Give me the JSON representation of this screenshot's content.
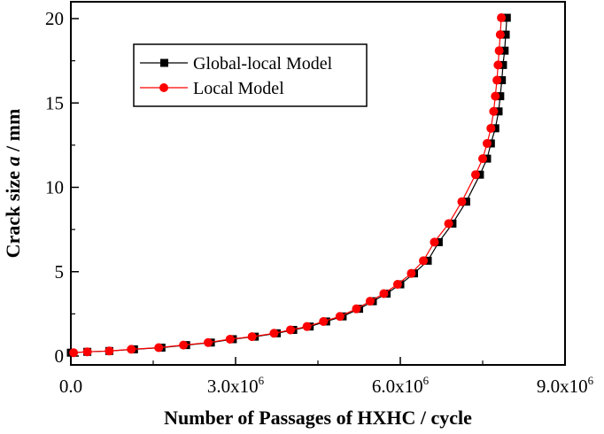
{
  "chart_data": {
    "type": "line",
    "title": "",
    "xlabel": "Number of Passages of HXHC / cycle",
    "ylabel_parts": [
      "Crack size ",
      "a",
      " / mm"
    ],
    "xlim": [
      0,
      9000000
    ],
    "ylim": [
      0,
      20
    ],
    "x_ticks": [
      {
        "value": 0,
        "mantissa": "0.0",
        "exponent": ""
      },
      {
        "value": 3000000,
        "mantissa": "3.0x10",
        "exponent": "6"
      },
      {
        "value": 6000000,
        "mantissa": "6.0x10",
        "exponent": "6"
      },
      {
        "value": 9000000,
        "mantissa": "9.0x10",
        "exponent": "6"
      }
    ],
    "y_ticks": [
      {
        "value": 0,
        "label": "0"
      },
      {
        "value": 5,
        "label": "5"
      },
      {
        "value": 10,
        "label": "10"
      },
      {
        "value": 15,
        "label": "15"
      },
      {
        "value": 20,
        "label": "20"
      }
    ],
    "legend_position": "top-left",
    "series": [
      {
        "name": "Global-local Model",
        "color": "#000000",
        "marker": "square",
        "points": [
          [
            0,
            0.2
          ],
          [
            300000,
            0.25
          ],
          [
            700000,
            0.3
          ],
          [
            1150000,
            0.4
          ],
          [
            1650000,
            0.5
          ],
          [
            2100000,
            0.65
          ],
          [
            2550000,
            0.8
          ],
          [
            2950000,
            1.0
          ],
          [
            3350000,
            1.15
          ],
          [
            3750000,
            1.35
          ],
          [
            4050000,
            1.55
          ],
          [
            4350000,
            1.75
          ],
          [
            4650000,
            2.05
          ],
          [
            4950000,
            2.35
          ],
          [
            5250000,
            2.8
          ],
          [
            5500000,
            3.25
          ],
          [
            5750000,
            3.7
          ],
          [
            6000000,
            4.25
          ],
          [
            6250000,
            4.9
          ],
          [
            6500000,
            5.65
          ],
          [
            6700000,
            6.75
          ],
          [
            6950000,
            7.85
          ],
          [
            7200000,
            9.15
          ],
          [
            7450000,
            10.75
          ],
          [
            7580000,
            11.7
          ],
          [
            7650000,
            12.6
          ],
          [
            7730000,
            13.5
          ],
          [
            7790000,
            14.5
          ],
          [
            7820000,
            15.4
          ],
          [
            7850000,
            16.35
          ],
          [
            7870000,
            17.25
          ],
          [
            7900000,
            18.1
          ],
          [
            7920000,
            19.05
          ],
          [
            7940000,
            20.05
          ]
        ]
      },
      {
        "name": "Local Model",
        "color": "#ff0000",
        "marker": "circle",
        "points": [
          [
            50000,
            0.2
          ],
          [
            300000,
            0.25
          ],
          [
            700000,
            0.3
          ],
          [
            1100000,
            0.4
          ],
          [
            1600000,
            0.5
          ],
          [
            2050000,
            0.65
          ],
          [
            2500000,
            0.8
          ],
          [
            2900000,
            1.0
          ],
          [
            3300000,
            1.15
          ],
          [
            3700000,
            1.35
          ],
          [
            4000000,
            1.55
          ],
          [
            4300000,
            1.75
          ],
          [
            4600000,
            2.05
          ],
          [
            4900000,
            2.35
          ],
          [
            5200000,
            2.8
          ],
          [
            5450000,
            3.25
          ],
          [
            5700000,
            3.7
          ],
          [
            5950000,
            4.25
          ],
          [
            6200000,
            4.9
          ],
          [
            6420000,
            5.65
          ],
          [
            6620000,
            6.75
          ],
          [
            6880000,
            7.85
          ],
          [
            7120000,
            9.15
          ],
          [
            7370000,
            10.75
          ],
          [
            7500000,
            11.7
          ],
          [
            7580000,
            12.6
          ],
          [
            7650000,
            13.5
          ],
          [
            7700000,
            14.5
          ],
          [
            7730000,
            15.4
          ],
          [
            7760000,
            16.35
          ],
          [
            7780000,
            17.25
          ],
          [
            7800000,
            18.1
          ],
          [
            7820000,
            19.05
          ],
          [
            7840000,
            20.05
          ]
        ]
      }
    ]
  }
}
